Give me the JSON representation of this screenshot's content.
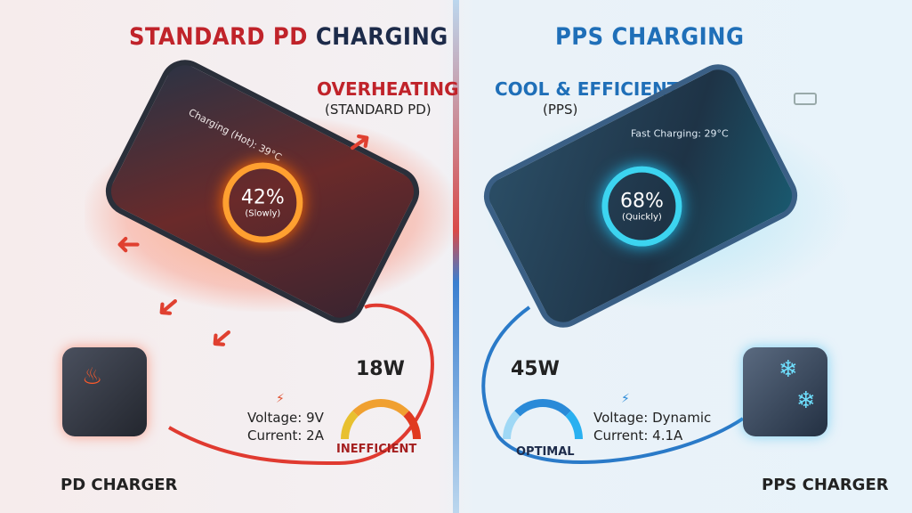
{
  "left": {
    "title_part1": "STANDARD PD",
    "title_part2": "CHARGING",
    "callout_title": "OVERHEATING",
    "callout_sub": "(STANDARD PD)",
    "screen_status": "Charging (Hot): 39°C",
    "percent": "42%",
    "speed": "(Slowly)",
    "battery_level": 42,
    "power": "18W",
    "voltage": "Voltage: 9V",
    "current": "Current: 2A",
    "gauge_label": "INEFFICIENT",
    "charger_label": "PD CHARGER",
    "accent": "#c0232a"
  },
  "right": {
    "title": "PPS CHARGING",
    "callout_title": "COOL & EFFICIENT",
    "callout_sub": "(PPS)",
    "screen_status": "Fast Charging: 29°C",
    "percent": "68%",
    "speed": "(Quickly)",
    "battery_level": 68,
    "power": "45W",
    "voltage": "Voltage: Dynamic",
    "current": "Current: 4.1A",
    "gauge_label": "OPTIMAL",
    "charger_label": "PPS CHARGER",
    "accent": "#1f6fb8"
  }
}
